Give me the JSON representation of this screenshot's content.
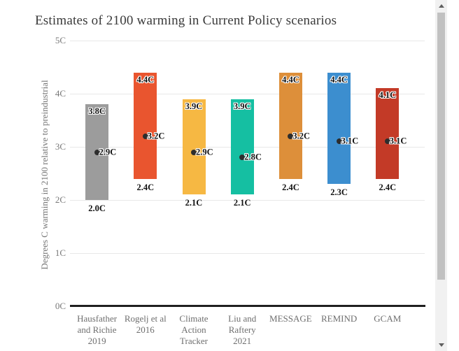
{
  "window": {
    "scrollbar": {
      "up_icon": "triangle-up",
      "down_icon": "triangle-down",
      "track_color": "#f1f1f1",
      "thumb_color": "#c1c1c1"
    }
  },
  "chart_data": {
    "type": "bar",
    "subtype": "range-bar-with-central-estimate",
    "title": "Estimates of 2100 warming in Current Policy scenarios",
    "ylabel": "Degrees C warming in 2100 relative to preindustrial",
    "xlabel": "",
    "ylim": [
      0,
      5
    ],
    "grid": "horizontal",
    "legend": "none",
    "yticks": [
      {
        "value": 0,
        "label": "0C"
      },
      {
        "value": 1,
        "label": "1C"
      },
      {
        "value": 2,
        "label": "2C"
      },
      {
        "value": 3,
        "label": "3C"
      },
      {
        "value": 4,
        "label": "4C"
      },
      {
        "value": 5,
        "label": "5C"
      }
    ],
    "categories": [
      "Hausfather and Richie 2019",
      "Rogelj et al 2016",
      "Climate Action Tracker",
      "Liu and Raftery 2021",
      "MESSAGE",
      "REMIND",
      "GCAM"
    ],
    "series": [
      {
        "name": "Hausfather and Richie 2019",
        "label_lines": [
          "Hausfather",
          "and Richie",
          "2019"
        ],
        "min": 2.0,
        "max": 3.8,
        "central": 2.9,
        "min_label": "2.0C",
        "max_label": "3.8C",
        "central_label": "2.9C",
        "color": "#9c9c9c"
      },
      {
        "name": "Rogelj et al 2016",
        "label_lines": [
          "Rogelj et al",
          "2016"
        ],
        "min": 2.4,
        "max": 4.4,
        "central": 3.2,
        "min_label": "2.4C",
        "max_label": "4.4C",
        "central_label": "3.2C",
        "color": "#e9552f"
      },
      {
        "name": "Climate Action Tracker",
        "label_lines": [
          "Climate",
          "Action",
          "Tracker"
        ],
        "min": 2.1,
        "max": 3.9,
        "central": 2.9,
        "min_label": "2.1C",
        "max_label": "3.9C",
        "central_label": "2.9C",
        "color": "#f6b843"
      },
      {
        "name": "Liu and Raftery 2021",
        "label_lines": [
          "Liu and",
          "Raftery",
          "2021"
        ],
        "min": 2.1,
        "max": 3.9,
        "central": 2.8,
        "min_label": "2.1C",
        "max_label": "3.9C",
        "central_label": "2.8C",
        "color": "#15bfa2"
      },
      {
        "name": "MESSAGE",
        "label_lines": [
          "MESSAGE"
        ],
        "min": 2.4,
        "max": 4.4,
        "central": 3.2,
        "min_label": "2.4C",
        "max_label": "4.4C",
        "central_label": "3.2C",
        "color": "#dd8f3a"
      },
      {
        "name": "REMIND",
        "label_lines": [
          "REMIND"
        ],
        "min": 2.3,
        "max": 4.4,
        "central": 3.1,
        "min_label": "2.3C",
        "max_label": "4.4C",
        "central_label": "3.1C",
        "color": "#3c8ecf"
      },
      {
        "name": "GCAM",
        "label_lines": [
          "GCAM"
        ],
        "min": 2.4,
        "max": 4.1,
        "central": 3.1,
        "min_label": "2.4C",
        "max_label": "4.1C",
        "central_label": "3.1C",
        "color": "#c33a27"
      }
    ],
    "dot_color": "#2d2d2d"
  }
}
